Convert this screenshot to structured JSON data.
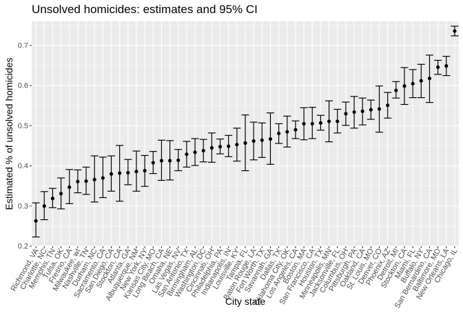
{
  "chart_data": {
    "type": "scatter",
    "title": "Unsolved homicides: estimates and 95% CI",
    "xlabel": "City state",
    "ylabel": "Estimated % of unsolved homicides",
    "ylim": [
      0.2,
      0.76
    ],
    "yticks": [
      "0.2",
      "0.3",
      "0.4",
      "0.5",
      "0.6",
      "0.7"
    ],
    "grid": true,
    "categories": [
      "Richmond, VA",
      "Charlotte, NC",
      "Memphis, TN",
      "Tulsa, OK",
      "Fresno, CA",
      "Milwaukee, wI",
      "Nashville, TN",
      "Durham, NC",
      "Sacramento, CA",
      "San Diego, CA",
      "Stockton, CA",
      "Atlanta, GA",
      "Albuquerque, NM",
      "New York, NY",
      "Kansas City, MO",
      "Long Beach, CA",
      "Omaha, NE",
      "Las Vegas, NV",
      "San Antonio, TX",
      "Birmingham, AL",
      "Washington, DC",
      "Cincinnati, OH",
      "Philadelphia, PA",
      "Indianapolis, IN",
      "Louisville, KY",
      "Tampa, FL",
      "Baton Rouge, LA",
      "Fort Worth, TX",
      "Savannah, GA",
      "Dallas, TX",
      "Oklahoma City, OK",
      "Los Angeles, CA",
      "Boston, MA",
      "San Francisco, CA",
      "Houston, TX",
      "Minneapolis, MN",
      "Jacksonville, FL",
      "Columbus, OH",
      "Pittsburgh, PA",
      "Oakland, CA",
      "St. Louis, MO",
      "Denver, CO",
      "Phoenix, AZ",
      "Detroit, MI",
      "Stockton, CA",
      "Miami, FL",
      "Buffalo, NY",
      "San Bernardino, CA",
      "Baltimore, MD",
      "New Orleans, LA",
      "Chicago, IL"
    ],
    "series": [
      {
        "values": [
          0.263,
          0.3,
          0.319,
          0.331,
          0.347,
          0.361,
          0.362,
          0.366,
          0.37,
          0.38,
          0.382,
          0.383,
          0.386,
          0.388,
          0.408,
          0.413,
          0.413,
          0.414,
          0.429,
          0.434,
          0.438,
          0.445,
          0.448,
          0.449,
          0.453,
          0.457,
          0.462,
          0.464,
          0.467,
          0.481,
          0.485,
          0.49,
          0.505,
          0.505,
          0.507,
          0.511,
          0.511,
          0.53,
          0.534,
          0.536,
          0.54,
          0.542,
          0.551,
          0.588,
          0.599,
          0.605,
          0.612,
          0.618,
          0.646,
          0.649,
          0.736
        ],
        "lower": [
          0.223,
          0.266,
          0.296,
          0.293,
          0.306,
          0.333,
          0.329,
          0.31,
          0.321,
          0.337,
          0.312,
          0.353,
          0.337,
          0.349,
          0.381,
          0.364,
          0.365,
          0.388,
          0.397,
          0.401,
          0.41,
          0.409,
          0.43,
          0.423,
          0.412,
          0.388,
          0.415,
          0.421,
          0.404,
          0.456,
          0.447,
          0.468,
          0.465,
          0.468,
          0.489,
          0.46,
          0.482,
          0.501,
          0.494,
          0.502,
          0.516,
          0.484,
          0.519,
          0.569,
          0.553,
          0.57,
          0.57,
          0.558,
          0.628,
          0.625,
          0.724
        ],
        "upper": [
          0.308,
          0.336,
          0.344,
          0.37,
          0.391,
          0.39,
          0.397,
          0.425,
          0.422,
          0.425,
          0.451,
          0.416,
          0.437,
          0.426,
          0.436,
          0.464,
          0.463,
          0.441,
          0.461,
          0.468,
          0.466,
          0.482,
          0.467,
          0.476,
          0.494,
          0.527,
          0.509,
          0.507,
          0.532,
          0.505,
          0.524,
          0.512,
          0.545,
          0.546,
          0.526,
          0.562,
          0.541,
          0.559,
          0.573,
          0.569,
          0.564,
          0.599,
          0.583,
          0.61,
          0.645,
          0.64,
          0.653,
          0.676,
          0.663,
          0.673,
          0.748
        ]
      }
    ]
  },
  "style": {
    "panel_bg": "#ebebeb",
    "grid_major": "#ffffff",
    "point_color": "#000000",
    "text_color": "#4d4d4d"
  }
}
